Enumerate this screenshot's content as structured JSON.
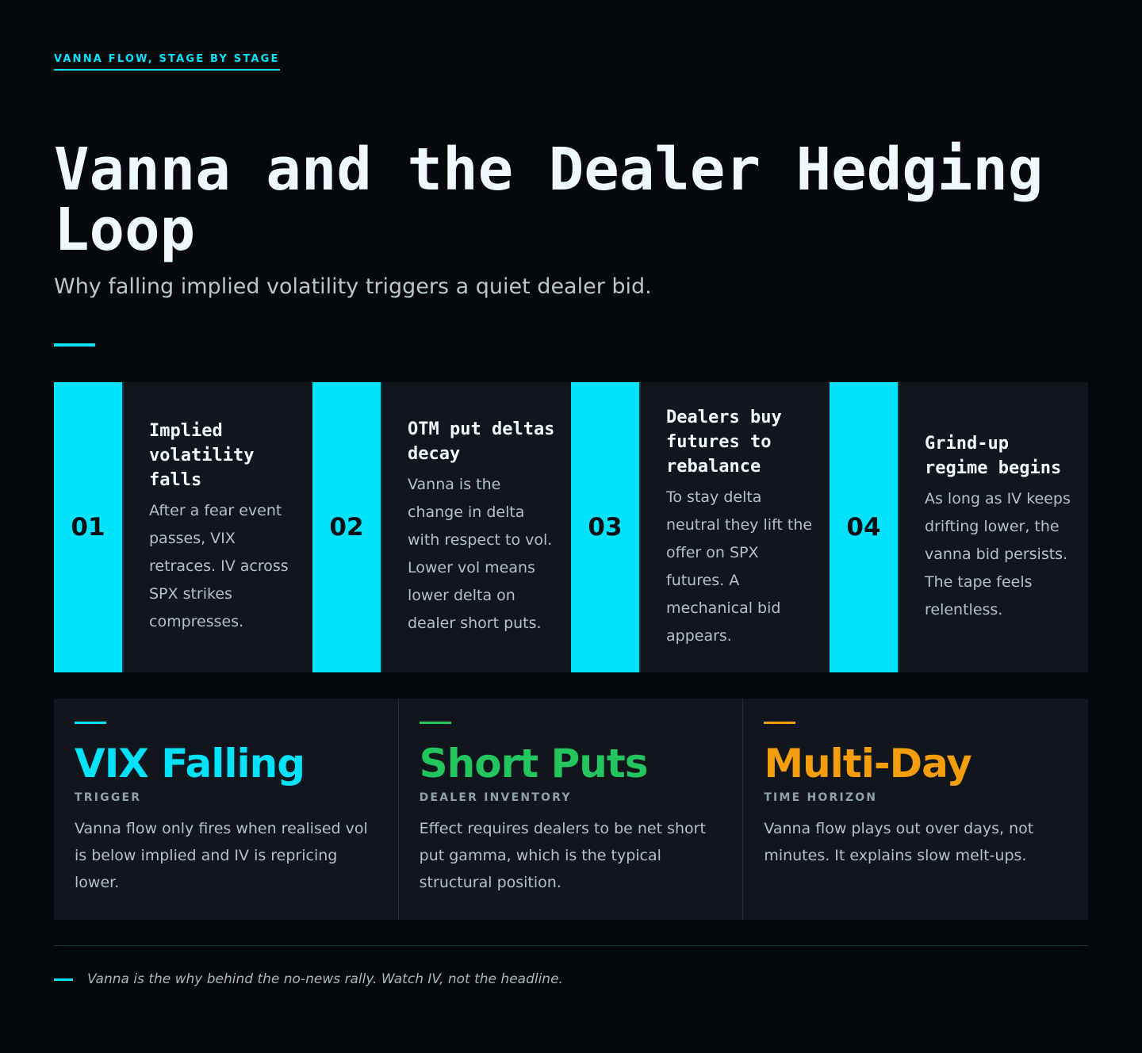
{
  "header": {
    "eyebrow": "VANNA FLOW, STAGE BY STAGE",
    "title": "Vanna and the Dealer Hedging Loop",
    "subtitle": "Why falling implied volatility triggers a quiet dealer bid."
  },
  "stages": [
    {
      "number": "01",
      "title": "Implied volatility falls",
      "text": "After a fear event passes, VIX retraces. IV across SPX strikes compresses."
    },
    {
      "number": "02",
      "title": "OTM put deltas decay",
      "text": "Vanna is the change in delta with respect to vol. Lower vol means lower delta on dealer short puts."
    },
    {
      "number": "03",
      "title": "Dealers buy futures to rebalance",
      "text": "To stay delta neutral they lift the offer on SPX futures. A mechanical bid appears."
    },
    {
      "number": "04",
      "title": "Grind-up regime begins",
      "text": "As long as IV keeps drifting lower, the vanna bid persists. The tape feels relentless."
    }
  ],
  "stats": [
    {
      "value": "VIX Falling",
      "label": "TRIGGER",
      "text": "Vanna flow only fires when realised vol is below implied and IV is repricing lower.",
      "color": "#00e1fa"
    },
    {
      "value": "Short Puts",
      "label": "DEALER INVENTORY",
      "text": "Effect requires dealers to be net short put gamma, which is the typical structural position.",
      "color": "#22c55e"
    },
    {
      "value": "Multi-Day",
      "label": "TIME HORIZON",
      "text": "Vanna flow plays out over days, not minutes. It explains slow melt-ups.",
      "color": "#f59e0b"
    }
  ],
  "footer": {
    "note": "Vanna is the why behind the no-news rally. Watch IV, not the headline."
  },
  "colors": {
    "accent": "#00e1fa",
    "background": "#06090c",
    "panel": "#10161b"
  }
}
